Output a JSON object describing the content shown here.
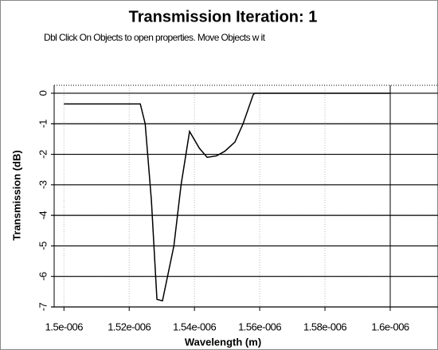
{
  "chart_data": {
    "type": "line",
    "title": "Transmission Iteration: 1",
    "subtitle": "Dbl Click On Objects to open properties.  Move Objects w it",
    "x_label": "Wavelength (m)",
    "y_label": "Transmission (dB)",
    "x": [
      1.5e-06,
      1.5234e-06,
      1.5249e-06,
      1.5268e-06,
      1.5285e-06,
      1.5302e-06,
      1.5337e-06,
      1.5359e-06,
      1.5385e-06,
      1.5415e-06,
      1.5439e-06,
      1.5468e-06,
      1.5493e-06,
      1.5524e-06,
      1.5549e-06,
      1.558e-06,
      1.5585e-06,
      1.6e-06
    ],
    "values": [
      -0.35,
      -0.35,
      -1.0,
      -3.5,
      -6.75,
      -6.8,
      -5.0,
      -3.0,
      -1.25,
      -1.8,
      -2.1,
      -2.05,
      -1.9,
      -1.6,
      -1.0,
      -0.05,
      0,
      0
    ],
    "color": "#000000",
    "xlim": [
      1.497e-06,
      1.6e-06
    ],
    "xticks": [
      {
        "value": 1.5e-06,
        "label": "1.5e-006"
      },
      {
        "value": 1.52e-06,
        "label": "1.52e-006"
      },
      {
        "value": 1.54e-06,
        "label": "1.54e-006"
      },
      {
        "value": 1.56e-06,
        "label": "1.56e-006"
      },
      {
        "value": 1.58e-06,
        "label": "1.58e-006"
      },
      {
        "value": 1.6e-06,
        "label": "1.6e-006"
      }
    ],
    "ylim": [
      -7,
      0.26
    ],
    "yticks": [
      0,
      -1,
      -2,
      -3,
      -4,
      -5,
      -6,
      -7
    ],
    "grid": true
  }
}
